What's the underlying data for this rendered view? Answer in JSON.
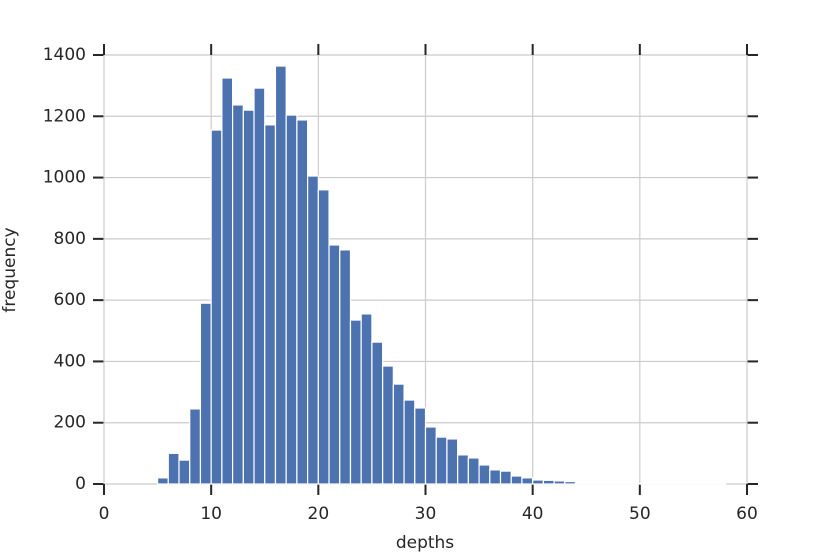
{
  "chart_data": {
    "type": "histogram",
    "xlabel": "depths",
    "ylabel": "frequency",
    "color": "#4c72b0",
    "bins": [
      5,
      6,
      7,
      8,
      9,
      10,
      11,
      12,
      13,
      14,
      15,
      16,
      17,
      18,
      19,
      20,
      21,
      22,
      23,
      24,
      25,
      26,
      27,
      28,
      29,
      30,
      31,
      32,
      33,
      34,
      35,
      36,
      37,
      38,
      39,
      40,
      41,
      42,
      43,
      44,
      45,
      46,
      47,
      48,
      49,
      50,
      51,
      52,
      53,
      54,
      55,
      56,
      57,
      58
    ],
    "values": [
      20,
      100,
      78,
      245,
      590,
      1155,
      1325,
      1237,
      1220,
      1292,
      1172,
      1364,
      1204,
      1188,
      1005,
      960,
      780,
      764,
      535,
      555,
      463,
      385,
      326,
      274,
      248,
      186,
      153,
      147,
      95,
      85,
      62,
      46,
      42,
      26,
      20,
      13,
      12,
      10,
      8,
      3,
      2,
      2,
      1,
      1,
      1,
      1,
      1,
      1,
      1,
      1,
      1,
      1,
      1
    ],
    "xlim": [
      0,
      60
    ],
    "ylim": [
      0,
      1400
    ],
    "xticks": [
      0,
      10,
      20,
      30,
      40,
      50,
      60
    ],
    "yticks": [
      0,
      200,
      400,
      600,
      800,
      1000,
      1200,
      1400
    ],
    "grid": true
  }
}
